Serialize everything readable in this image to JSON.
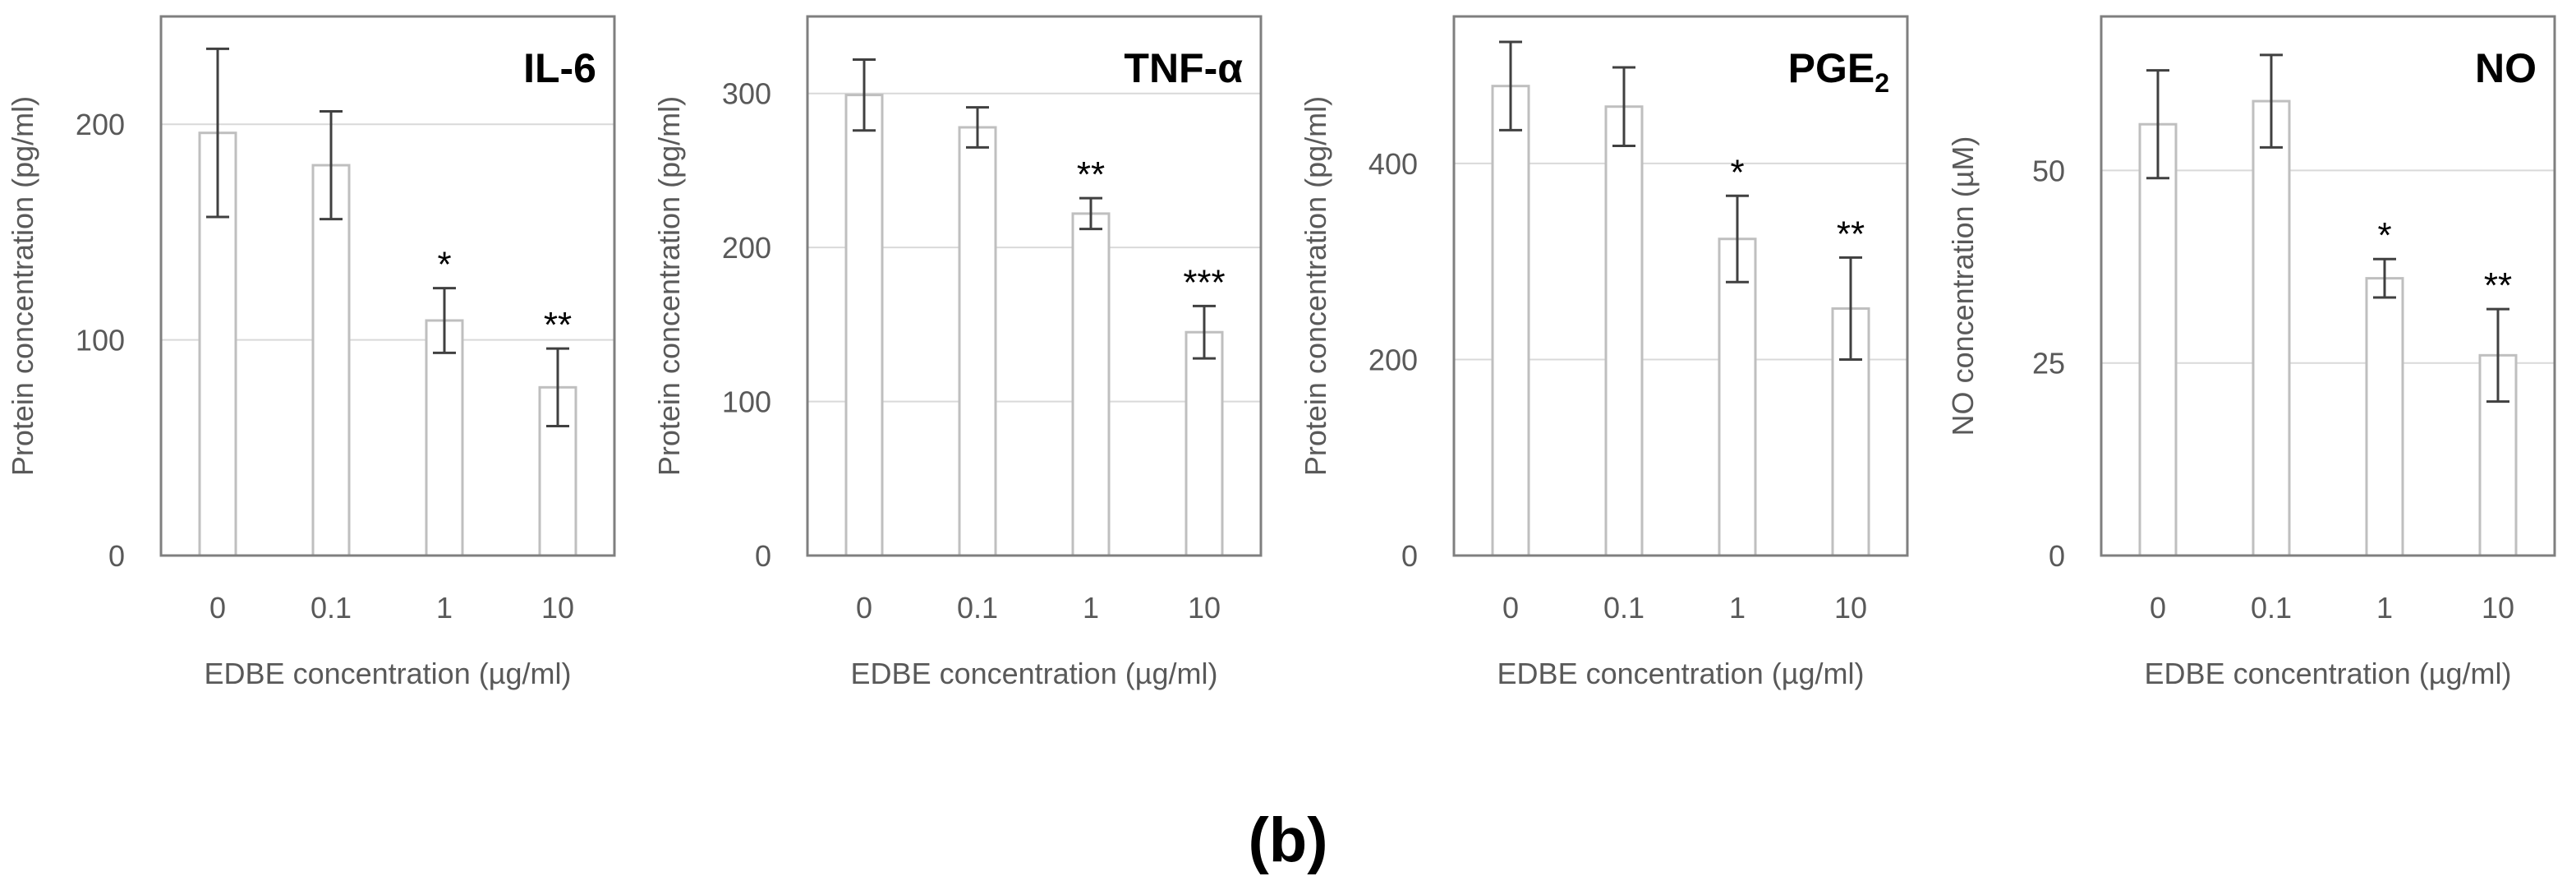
{
  "figure": {
    "caption": "(b)",
    "colors": {
      "frame": "#7f7f7f",
      "grid": "#d9d9d9",
      "bar_edge": "#bfbfbf",
      "bar_fill": "#ffffff",
      "error": "#404040",
      "text": "#595959"
    }
  },
  "chart_data": [
    {
      "type": "bar",
      "title": "IL-6",
      "xlabel": "EDBE concentration (µg/ml)",
      "ylabel": "Protein concentration (pg/ml)",
      "categories": [
        "0",
        "0.1",
        "1",
        "10"
      ],
      "values": [
        196,
        181,
        109,
        78
      ],
      "errors": [
        39,
        25,
        15,
        18
      ],
      "significance": [
        "",
        "",
        "*",
        "**"
      ],
      "ylim": [
        0,
        250
      ],
      "yticks": [
        0,
        100,
        200
      ],
      "ytick_labels": [
        "0",
        "100",
        "200"
      ],
      "grid": true,
      "legend": "none"
    },
    {
      "type": "bar",
      "title": "TNF-α",
      "xlabel": "EDBE concentration (µg/ml)",
      "ylabel": "Protein concentration (pg/ml)",
      "categories": [
        "0",
        "0.1",
        "1",
        "10"
      ],
      "values": [
        299,
        278,
        222,
        145
      ],
      "errors": [
        23,
        13,
        10,
        17
      ],
      "significance": [
        "",
        "",
        "**",
        "***"
      ],
      "ylim": [
        0,
        350
      ],
      "yticks": [
        0,
        100,
        200,
        300
      ],
      "ytick_labels": [
        "0",
        "100",
        "200",
        "300"
      ],
      "grid": true,
      "legend": "none"
    },
    {
      "type": "bar",
      "title": "PGE",
      "title_subscript": "2",
      "xlabel": "EDBE concentration (µg/ml)",
      "ylabel": "Protein concentration (pg/ml)",
      "categories": [
        "0",
        "0.1",
        "1",
        "10"
      ],
      "values": [
        479,
        458,
        323,
        252
      ],
      "errors": [
        45,
        40,
        44,
        52
      ],
      "significance": [
        "",
        "",
        "*",
        "**"
      ],
      "ylim": [
        0,
        550
      ],
      "yticks": [
        0,
        200,
        400
      ],
      "ytick_labels": [
        "0",
        "200",
        "400"
      ],
      "grid": true,
      "legend": "none"
    },
    {
      "type": "bar",
      "title": "NO",
      "xlabel": "EDBE concentration (µg/ml)",
      "ylabel": "NO concentration (µM)",
      "categories": [
        "0",
        "0.1",
        "1",
        "10"
      ],
      "values": [
        56,
        59,
        36,
        26
      ],
      "errors": [
        7,
        6,
        2.5,
        6
      ],
      "significance": [
        "",
        "",
        "*",
        "**"
      ],
      "ylim": [
        0,
        70
      ],
      "yticks": [
        0,
        25,
        50
      ],
      "ytick_labels": [
        "0",
        "25",
        "50"
      ],
      "grid": true,
      "legend": "none"
    }
  ]
}
